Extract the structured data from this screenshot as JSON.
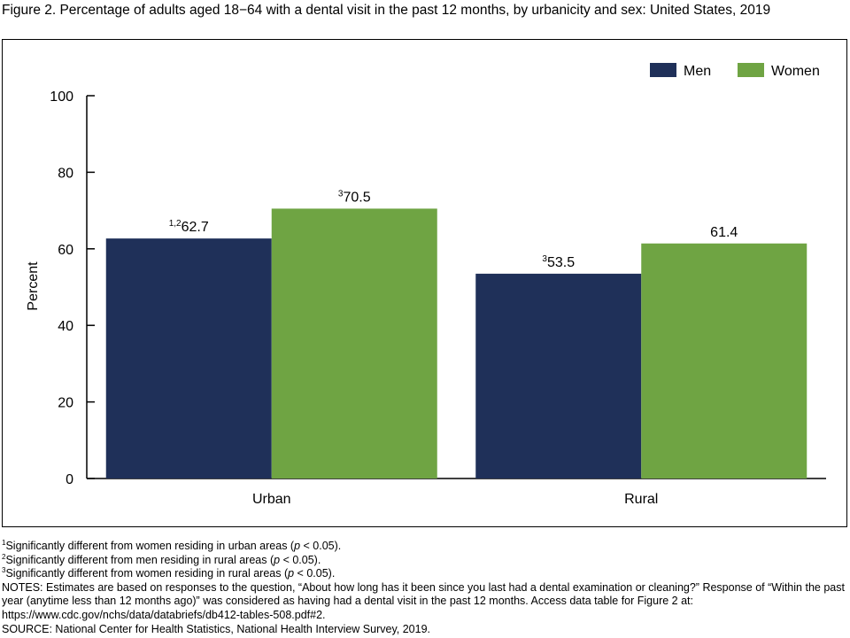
{
  "title": "Figure 2. Percentage of adults aged 18−64 with a dental visit in the past 12 months, by urbanicity and sex: United States, 2019",
  "chart_data": {
    "type": "bar",
    "categories": [
      "Urban",
      "Rural"
    ],
    "series": [
      {
        "name": "Men",
        "color": "#1f3059",
        "values": [
          62.7,
          53.5
        ],
        "labels": [
          "62.7",
          "53.5"
        ],
        "label_sups": [
          "1,2",
          "3"
        ]
      },
      {
        "name": "Women",
        "color": "#6fa443",
        "values": [
          70.5,
          61.4
        ],
        "labels": [
          "70.5",
          "61.4"
        ],
        "label_sups": [
          "3",
          ""
        ]
      }
    ],
    "ylabel": "Percent",
    "xlabel": "",
    "ylim": [
      0,
      100
    ],
    "yticks": [
      "0",
      "20",
      "40",
      "60",
      "80",
      "100"
    ],
    "grid": false,
    "legend_position": "top-right"
  },
  "footnotes": [
    {
      "sup": "1",
      "before": "Significantly different from women residing in urban areas (",
      "italic": "p",
      "after": " < 0.05)."
    },
    {
      "sup": "2",
      "before": "Significantly different from men residing in rural areas (",
      "italic": "p",
      "after": " < 0.05)."
    },
    {
      "sup": "3",
      "before": "Significantly different from women residing in rural areas (",
      "italic": "p",
      "after": " < 0.05)."
    }
  ],
  "notes": "NOTES: Estimates are based on responses to the question, “About how long has it been since you last had a dental examination or cleaning?” Response of “Within the past year (anytime less than 12 months ago)” was considered as having had a dental visit in the past 12 months. Access data table for Figure 2 at: https://www.cdc.gov/nchs/data/databriefs/db412-tables-508.pdf#2.",
  "source": "SOURCE: National Center for Health Statistics, National Health Interview Survey, 2019."
}
